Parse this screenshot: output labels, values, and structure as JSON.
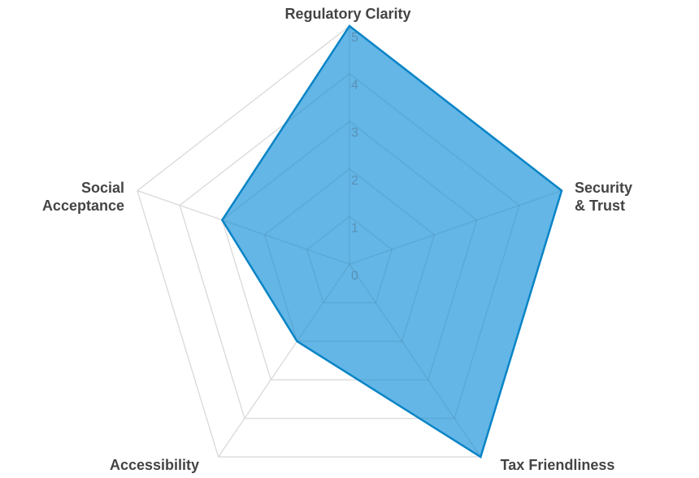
{
  "chart_data": {
    "type": "radar",
    "categories": [
      [
        "Regulatory Clarity"
      ],
      [
        "Security",
        "& Trust"
      ],
      [
        "Tax Friendliness"
      ],
      [
        "Accessibility"
      ],
      [
        "Social",
        "Acceptance"
      ]
    ],
    "series": [
      {
        "values": [
          5,
          5,
          5,
          2,
          3
        ]
      }
    ],
    "rlim": [
      0,
      5
    ],
    "ticks": [
      "0",
      "1",
      "2",
      "3",
      "4",
      "5"
    ],
    "grid": true,
    "colors": {
      "fill": "#63b6e6",
      "stroke": "#0a84c6",
      "grid": "#d9d9d9",
      "label": "#444444",
      "tick": "#5a90b8"
    }
  }
}
